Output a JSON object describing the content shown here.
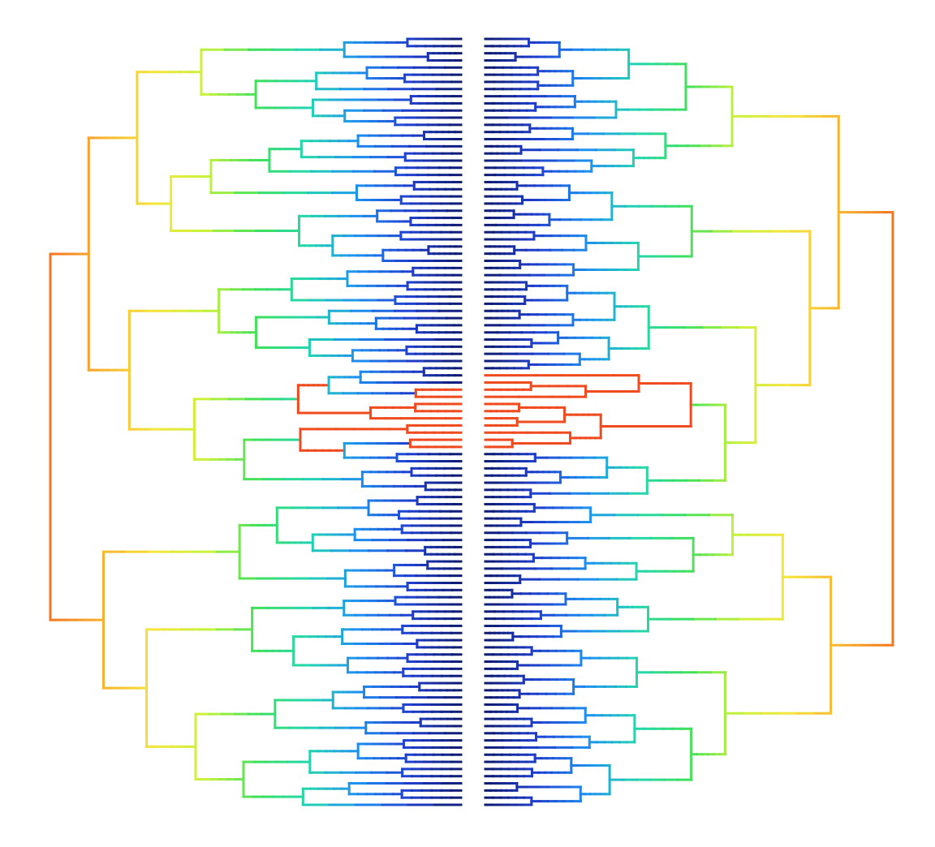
{
  "figure": {
    "type": "tanglegram",
    "description_visible_text": "",
    "colormap": [
      "#0d1a6e",
      "#1f3fcf",
      "#1e8ff0",
      "#22d6b0",
      "#3ee05a",
      "#c7f23a",
      "#f5e63a",
      "#f7b52e",
      "#f47a22",
      "#ef4b1f"
    ],
    "leaves_per_side": 108,
    "left_tree": {
      "orientation": "root-left",
      "root_color": "#f47a22"
    },
    "right_tree": {
      "orientation": "root-right",
      "root_color": "#f5e63a"
    },
    "highlighted_clade_color": "#ef4b1f"
  }
}
